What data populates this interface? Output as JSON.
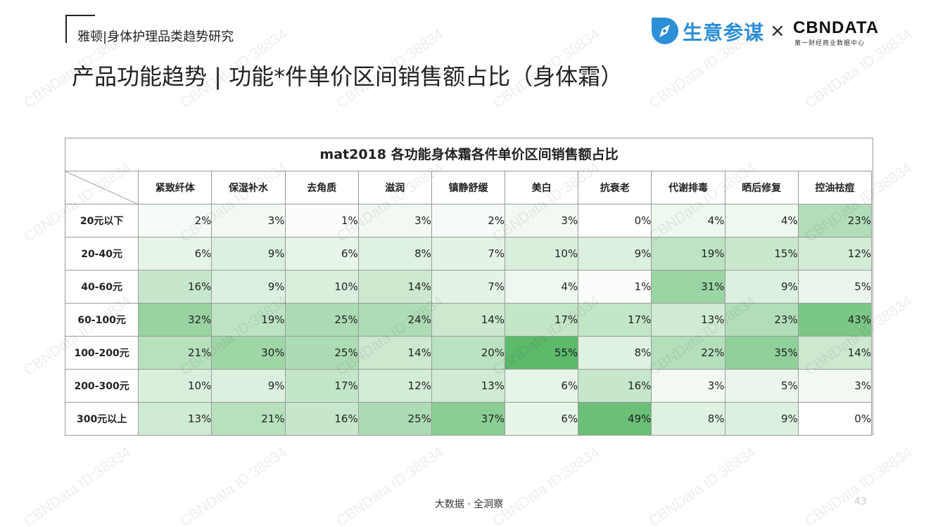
{
  "header": {
    "report_title": "雅顿|身体护理品类趋势研究",
    "page_title": "产品功能趋势 | 功能*件单价区间销售额占比（身体霜）"
  },
  "logos": {
    "brand_name": "生意参谋",
    "separator": "×",
    "partner_name": "CBNDATA",
    "partner_subtitle": "第一财经商业数据中心",
    "brand_color": "#2c8fd7"
  },
  "watermark_text": "CBNData ID:38834",
  "chart_data": {
    "type": "heatmap",
    "title": "mat2018 各功能身体霜各件单价区间销售额占比",
    "columns": [
      "紧致纤体",
      "保湿补水",
      "去角质",
      "滋润",
      "镇静舒缓",
      "美白",
      "抗衰老",
      "代谢排毒",
      "晒后修复",
      "控油祛痘"
    ],
    "rows": [
      "20元以下",
      "20-40元",
      "40-60元",
      "60-100元",
      "100-200元",
      "200-300元",
      "300元以上"
    ],
    "values": [
      [
        2,
        3,
        1,
        3,
        2,
        3,
        0,
        4,
        4,
        23
      ],
      [
        6,
        9,
        6,
        8,
        7,
        10,
        9,
        19,
        15,
        12
      ],
      [
        16,
        9,
        10,
        14,
        7,
        4,
        1,
        31,
        9,
        5
      ],
      [
        32,
        19,
        25,
        24,
        14,
        17,
        17,
        13,
        23,
        43
      ],
      [
        21,
        30,
        25,
        14,
        20,
        55,
        8,
        22,
        35,
        14
      ],
      [
        10,
        9,
        17,
        12,
        13,
        6,
        16,
        3,
        5,
        3
      ],
      [
        13,
        21,
        16,
        25,
        37,
        6,
        49,
        8,
        9,
        0
      ]
    ],
    "unit": "%",
    "color_low": "#ffffff",
    "color_high": "#5cba6a"
  },
  "footer": {
    "tagline": "大数据 · 全洞察",
    "page_number": "43"
  }
}
